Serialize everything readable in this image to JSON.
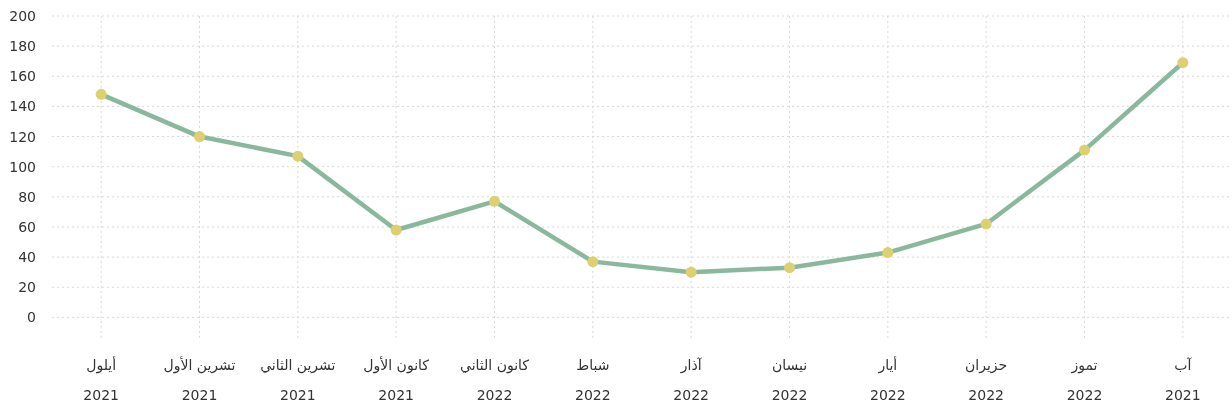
{
  "chart_data": {
    "type": "line",
    "categories": [
      "أيلول\n2021",
      "تشرين الأول\n2021",
      "تشرين الثاني\n2021",
      "كانون الأول\n2021",
      "كانون الثاني\n2022",
      "شباط\n2022",
      "آذار\n2022",
      "نيسان\n2022",
      "أيار\n2022",
      "حزيران\n2022",
      "تموز\n2022",
      "آب\n2021"
    ],
    "series": [
      {
        "color": "#8ab89c",
        "colors": [
          "#dcd072",
          "#dcd072",
          "#dcd072",
          "#dcd072",
          "#dcd072",
          "#dcd072",
          "#dcd072",
          "#dcd072",
          "#dcd072",
          "#dcd072",
          "#dcd072",
          "#dcd072"
        ],
        "values": [
          148,
          120,
          107,
          58,
          77,
          37,
          30,
          33,
          43,
          62,
          111,
          169
        ]
      }
    ],
    "ylim": [
      -15,
      200
    ],
    "yticks": [
      0,
      20,
      40,
      60,
      80,
      100,
      120,
      140,
      160,
      180,
      200
    ],
    "grid": true,
    "marker": "circle",
    "line_style": "solid"
  }
}
